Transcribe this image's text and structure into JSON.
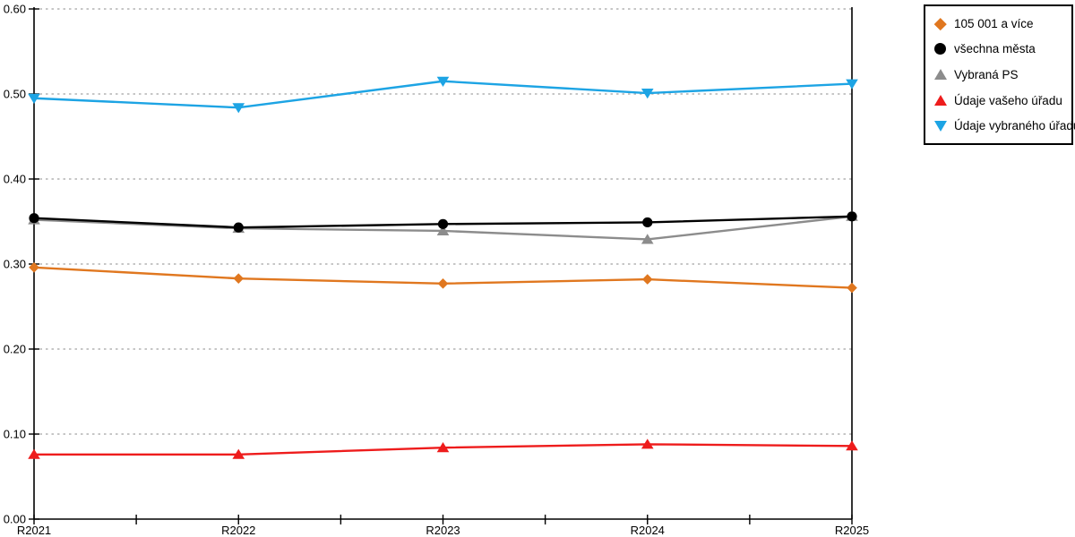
{
  "chart_data": {
    "type": "line",
    "title": "",
    "xlabel": "",
    "ylabel": "",
    "categories": [
      "R2021",
      "R2022",
      "R2023",
      "R2024",
      "R2025"
    ],
    "y_ticks": [
      "0.00",
      "0.10",
      "0.20",
      "0.30",
      "0.40",
      "0.50",
      "0.60"
    ],
    "ylim": [
      0.0,
      0.6
    ],
    "grid": "horizontal-dotted",
    "legend_position": "top-right-outside",
    "series": [
      {
        "name": "105 001 a více",
        "marker": "diamond",
        "color": "#e0771f",
        "values": [
          0.296,
          0.283,
          0.277,
          0.282,
          0.272
        ]
      },
      {
        "name": "všechna města",
        "marker": "circle",
        "color": "#000000",
        "values": [
          0.354,
          0.343,
          0.347,
          0.349,
          0.356
        ]
      },
      {
        "name": "Vybraná PS",
        "marker": "triangle-up",
        "color": "#8c8c8c",
        "values": [
          0.352,
          0.342,
          0.339,
          0.329,
          0.356
        ]
      },
      {
        "name": "Údaje vašeho úřadu",
        "marker": "triangle-up",
        "color": "#ee1c1c",
        "values": [
          0.076,
          0.076,
          0.084,
          0.088,
          0.086
        ]
      },
      {
        "name": "Údaje vybraného úřadu",
        "marker": "triangle-down",
        "color": "#1da4e4",
        "values": [
          0.495,
          0.484,
          0.515,
          0.501,
          0.512
        ]
      }
    ]
  },
  "colors": {
    "background": "#ffffff",
    "grid": "#b3b3b3",
    "axis": "#000000",
    "tick_label": "#000000",
    "legend_border": "#000000"
  }
}
